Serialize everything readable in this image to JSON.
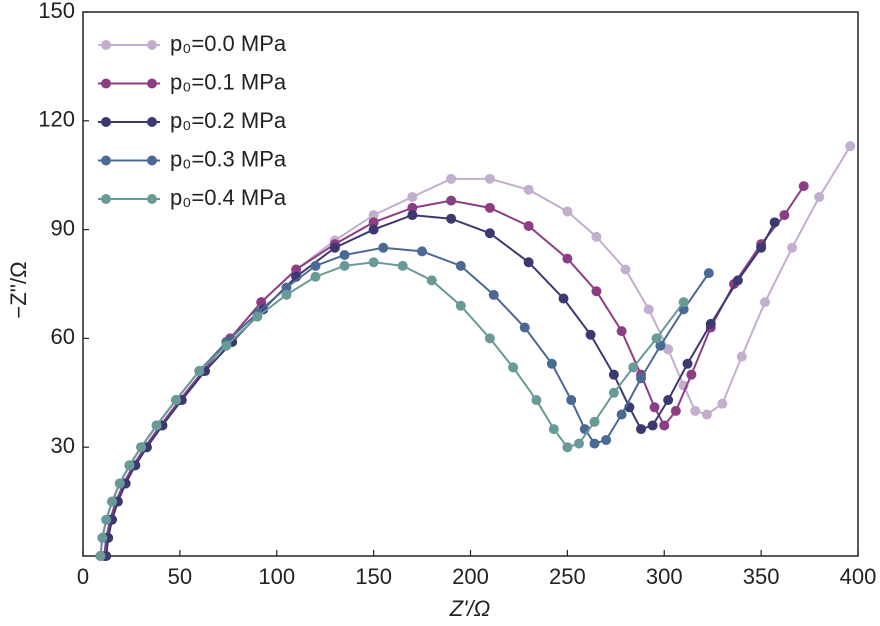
{
  "chart_data": {
    "type": "line",
    "x_label": "Z'/Ω",
    "y_label": "−Z''/Ω",
    "xlim": [
      0,
      400
    ],
    "ylim": [
      0,
      150
    ],
    "xticks": [
      0,
      50,
      100,
      150,
      200,
      250,
      300,
      350,
      400
    ],
    "yticks": [
      30,
      60,
      90,
      120,
      150
    ],
    "legend": "upper left",
    "series": [
      {
        "name": "p₀=0.0 MPa",
        "color": "#c4aece",
        "x": [
          11,
          12,
          14,
          17,
          21,
          26,
          32,
          40,
          50,
          62,
          76,
          92,
          110,
          130,
          150,
          170,
          190,
          210,
          230,
          250,
          265,
          280,
          292,
          302,
          310,
          316,
          322,
          330,
          340,
          352,
          366,
          380,
          396
        ],
        "values": [
          0,
          5,
          10,
          15,
          20,
          25,
          30,
          36,
          43,
          51,
          60,
          70,
          79,
          87,
          94,
          99,
          104,
          104,
          101,
          95,
          88,
          79,
          68,
          57,
          47,
          40,
          39,
          42,
          55,
          70,
          85,
          99,
          113
        ]
      },
      {
        "name": "p₀=0.1 MPa",
        "color": "#8c3e84",
        "x": [
          11,
          12,
          14,
          17,
          21,
          26,
          32,
          40,
          50,
          62,
          76,
          92,
          110,
          130,
          150,
          170,
          190,
          210,
          230,
          250,
          265,
          278,
          288,
          295,
          300,
          306,
          314,
          324,
          336,
          350,
          362,
          372
        ],
        "values": [
          0,
          5,
          10,
          15,
          20,
          25,
          30,
          36,
          43,
          51,
          60,
          70,
          79,
          86,
          92,
          96,
          98,
          96,
          91,
          82,
          73,
          62,
          50,
          41,
          36,
          40,
          50,
          63,
          75,
          86,
          94,
          102
        ]
      },
      {
        "name": "p₀=0.2 MPa",
        "color": "#3c3870",
        "x": [
          12,
          13,
          15,
          18,
          22,
          27,
          33,
          41,
          51,
          63,
          77,
          93,
          110,
          130,
          150,
          170,
          190,
          210,
          230,
          248,
          262,
          274,
          282,
          288,
          294,
          302,
          312,
          324,
          338,
          350,
          357
        ],
        "values": [
          0,
          5,
          10,
          15,
          20,
          25,
          30,
          36,
          43,
          51,
          59,
          68,
          77,
          85,
          90,
          94,
          93,
          89,
          81,
          71,
          61,
          50,
          41,
          35,
          36,
          43,
          53,
          64,
          76,
          85,
          92
        ]
      },
      {
        "name": "p₀=0.3 MPa",
        "color": "#4a6a94",
        "x": [
          9,
          10,
          12,
          15,
          19,
          24,
          30,
          38,
          48,
          60,
          74,
          90,
          105,
          120,
          135,
          155,
          175,
          195,
          212,
          228,
          242,
          252,
          259,
          264,
          270,
          278,
          288,
          298,
          310,
          323
        ],
        "values": [
          0,
          5,
          10,
          15,
          20,
          25,
          30,
          36,
          43,
          51,
          59,
          67,
          74,
          80,
          83,
          85,
          84,
          80,
          72,
          63,
          53,
          43,
          35,
          31,
          32,
          39,
          49,
          58,
          68,
          78
        ]
      },
      {
        "name": "p₀=0.4 MPa",
        "color": "#6a9a98",
        "x": [
          9,
          10,
          12,
          15,
          19,
          24,
          30,
          38,
          48,
          60,
          74,
          90,
          105,
          120,
          135,
          150,
          165,
          180,
          195,
          210,
          222,
          234,
          243,
          250,
          256,
          264,
          274,
          284,
          296,
          310
        ],
        "values": [
          0,
          5,
          10,
          15,
          20,
          25,
          30,
          36,
          43,
          51,
          58,
          66,
          72,
          77,
          80,
          81,
          80,
          76,
          69,
          60,
          52,
          43,
          35,
          30,
          31,
          37,
          45,
          52,
          60,
          70
        ]
      }
    ]
  }
}
